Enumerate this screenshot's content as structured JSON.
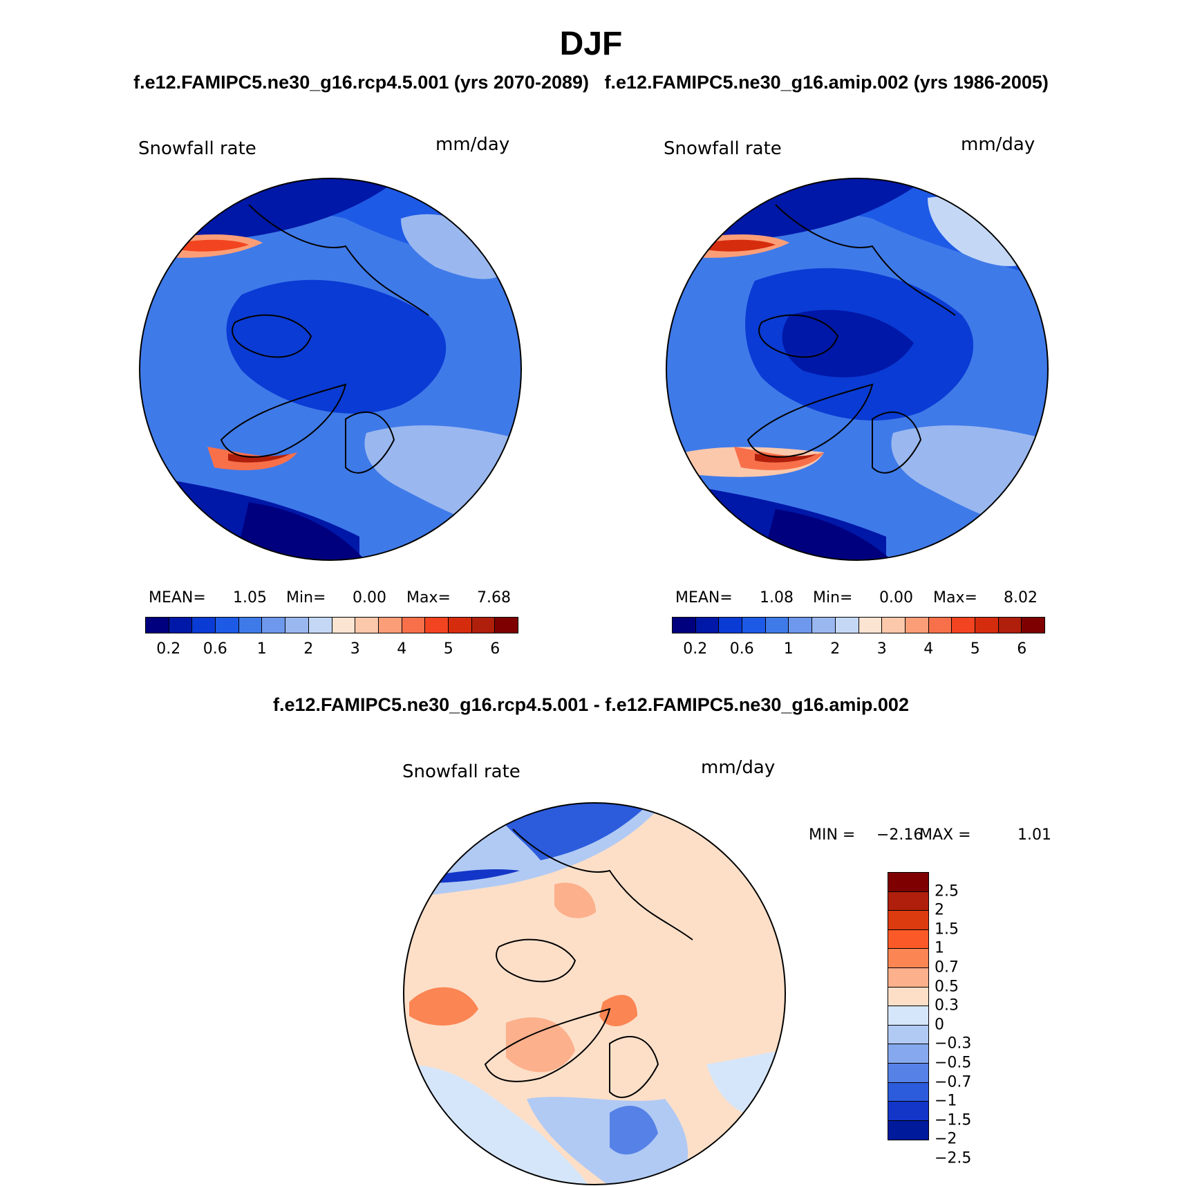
{
  "title": "DJF",
  "subtitle_top": "f.e12.FAMIPC5.ne30_g16.rcp4.5.001 (yrs 2070-2089)   f.e12.FAMIPC5.ne30_g16.amip.002 (yrs 1986-2005)",
  "subtitle_diff": "f.e12.FAMIPC5.ne30_g16.rcp4.5.001 - f.e12.FAMIPC5.ne30_g16.amip.002",
  "panels": [
    {
      "variable": "Snowfall rate",
      "units": "mm/day",
      "stats": {
        "mean_label": "MEAN=",
        "mean": "1.05",
        "min_label": "Min=",
        "min": "0.00",
        "max_label": "Max=",
        "max": "7.68"
      }
    },
    {
      "variable": "Snowfall rate",
      "units": "mm/day",
      "stats": {
        "mean_label": "MEAN=",
        "mean": "1.08",
        "min_label": "Min=",
        "min": "0.00",
        "max_label": "Max=",
        "max": "8.02"
      }
    },
    {
      "variable": "Snowfall rate",
      "units": "mm/day",
      "stats": {
        "min_label": "MIN =",
        "min": "−2.16",
        "max_label": "MAX =",
        "max": "1.01"
      }
    }
  ],
  "abs_colorbar": {
    "colors": [
      "#00007f",
      "#0018a8",
      "#0a3bd4",
      "#1d5ae6",
      "#3f7ae9",
      "#6d98eb",
      "#9ab8ef",
      "#c4d8f6",
      "#fbe4d2",
      "#fcc8ab",
      "#fb9e78",
      "#f8704a",
      "#f24420",
      "#d62c0e",
      "#b01f0b",
      "#7f0000"
    ],
    "ticks": [
      "0.2",
      "0.6",
      "1",
      "2",
      "3",
      "4",
      "5",
      "6"
    ]
  },
  "diff_colorbar": {
    "colors": [
      "#7f0000",
      "#b01f0b",
      "#dc3b10",
      "#fb5a28",
      "#fb8553",
      "#fcb08c",
      "#fddfc8",
      "#d6e6fa",
      "#b1caf4",
      "#86a8ee",
      "#5681e6",
      "#2c5cdc",
      "#1336c8",
      "#001a9c"
    ],
    "ticks": [
      "2.5",
      "2",
      "1.5",
      "1",
      "0.7",
      "0.5",
      "0.3",
      "0",
      "−0.3",
      "−0.5",
      "−0.7",
      "−1",
      "−1.5",
      "−2",
      "−2.5"
    ]
  }
}
